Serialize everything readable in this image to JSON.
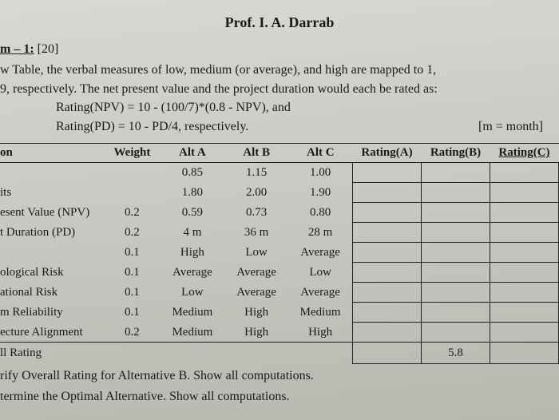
{
  "title": "Prof. I. A. Darrab",
  "problem_label": "m – 1:",
  "problem_points": "[20]",
  "desc_line1": "w Table, the verbal measures of low, medium (or average), and high are mapped to 1,",
  "desc_line2": "9, respectively. The net present value and the project duration would each be rated as:",
  "formula1": "Rating(NPV) = 10 - (100/7)*(0.8 - NPV), and",
  "formula2": "Rating(PD) = 10 - PD/4, respectively.",
  "month_note": "[m = month]",
  "headers": {
    "criterion": "on",
    "weight": "Weight",
    "altA": "Alt A",
    "altB": "Alt B",
    "altC": "Alt C",
    "ratingA": "Rating(A)",
    "ratingB": "Rating(B)",
    "ratingC": "Rating(C)"
  },
  "rows": [
    {
      "label": "",
      "weight": "",
      "a": "0.85",
      "b": "1.15",
      "c": "1.00"
    },
    {
      "label": "its",
      "weight": "",
      "a": "1.80",
      "b": "2.00",
      "c": "1.90"
    },
    {
      "label": "esent Value (NPV)",
      "weight": "0.2",
      "a": "0.59",
      "b": "0.73",
      "c": "0.80"
    },
    {
      "label": "t Duration (PD)",
      "weight": "0.2",
      "a": "4 m",
      "b": "36 m",
      "c": "28 m"
    },
    {
      "label": "",
      "weight": "0.1",
      "a": "High",
      "b": "Low",
      "c": "Average"
    },
    {
      "label": "ological Risk",
      "weight": "0.1",
      "a": "Average",
      "b": "Average",
      "c": "Low"
    },
    {
      "label": "ational Risk",
      "weight": "0.1",
      "a": "Low",
      "b": "Average",
      "c": "Average"
    },
    {
      "label": "m Reliability",
      "weight": "0.1",
      "a": "Medium",
      "b": "High",
      "c": "Medium"
    },
    {
      "label": "ecture Alignment",
      "weight": "0.2",
      "a": "Medium",
      "b": "High",
      "c": "High"
    }
  ],
  "overall_label": "ll Rating",
  "overall_b": "5.8",
  "footer_line1": "rify Overall Rating for Alternative B. Show all computations.",
  "footer_line2": "termine the Optimal Alternative. Show all computations."
}
